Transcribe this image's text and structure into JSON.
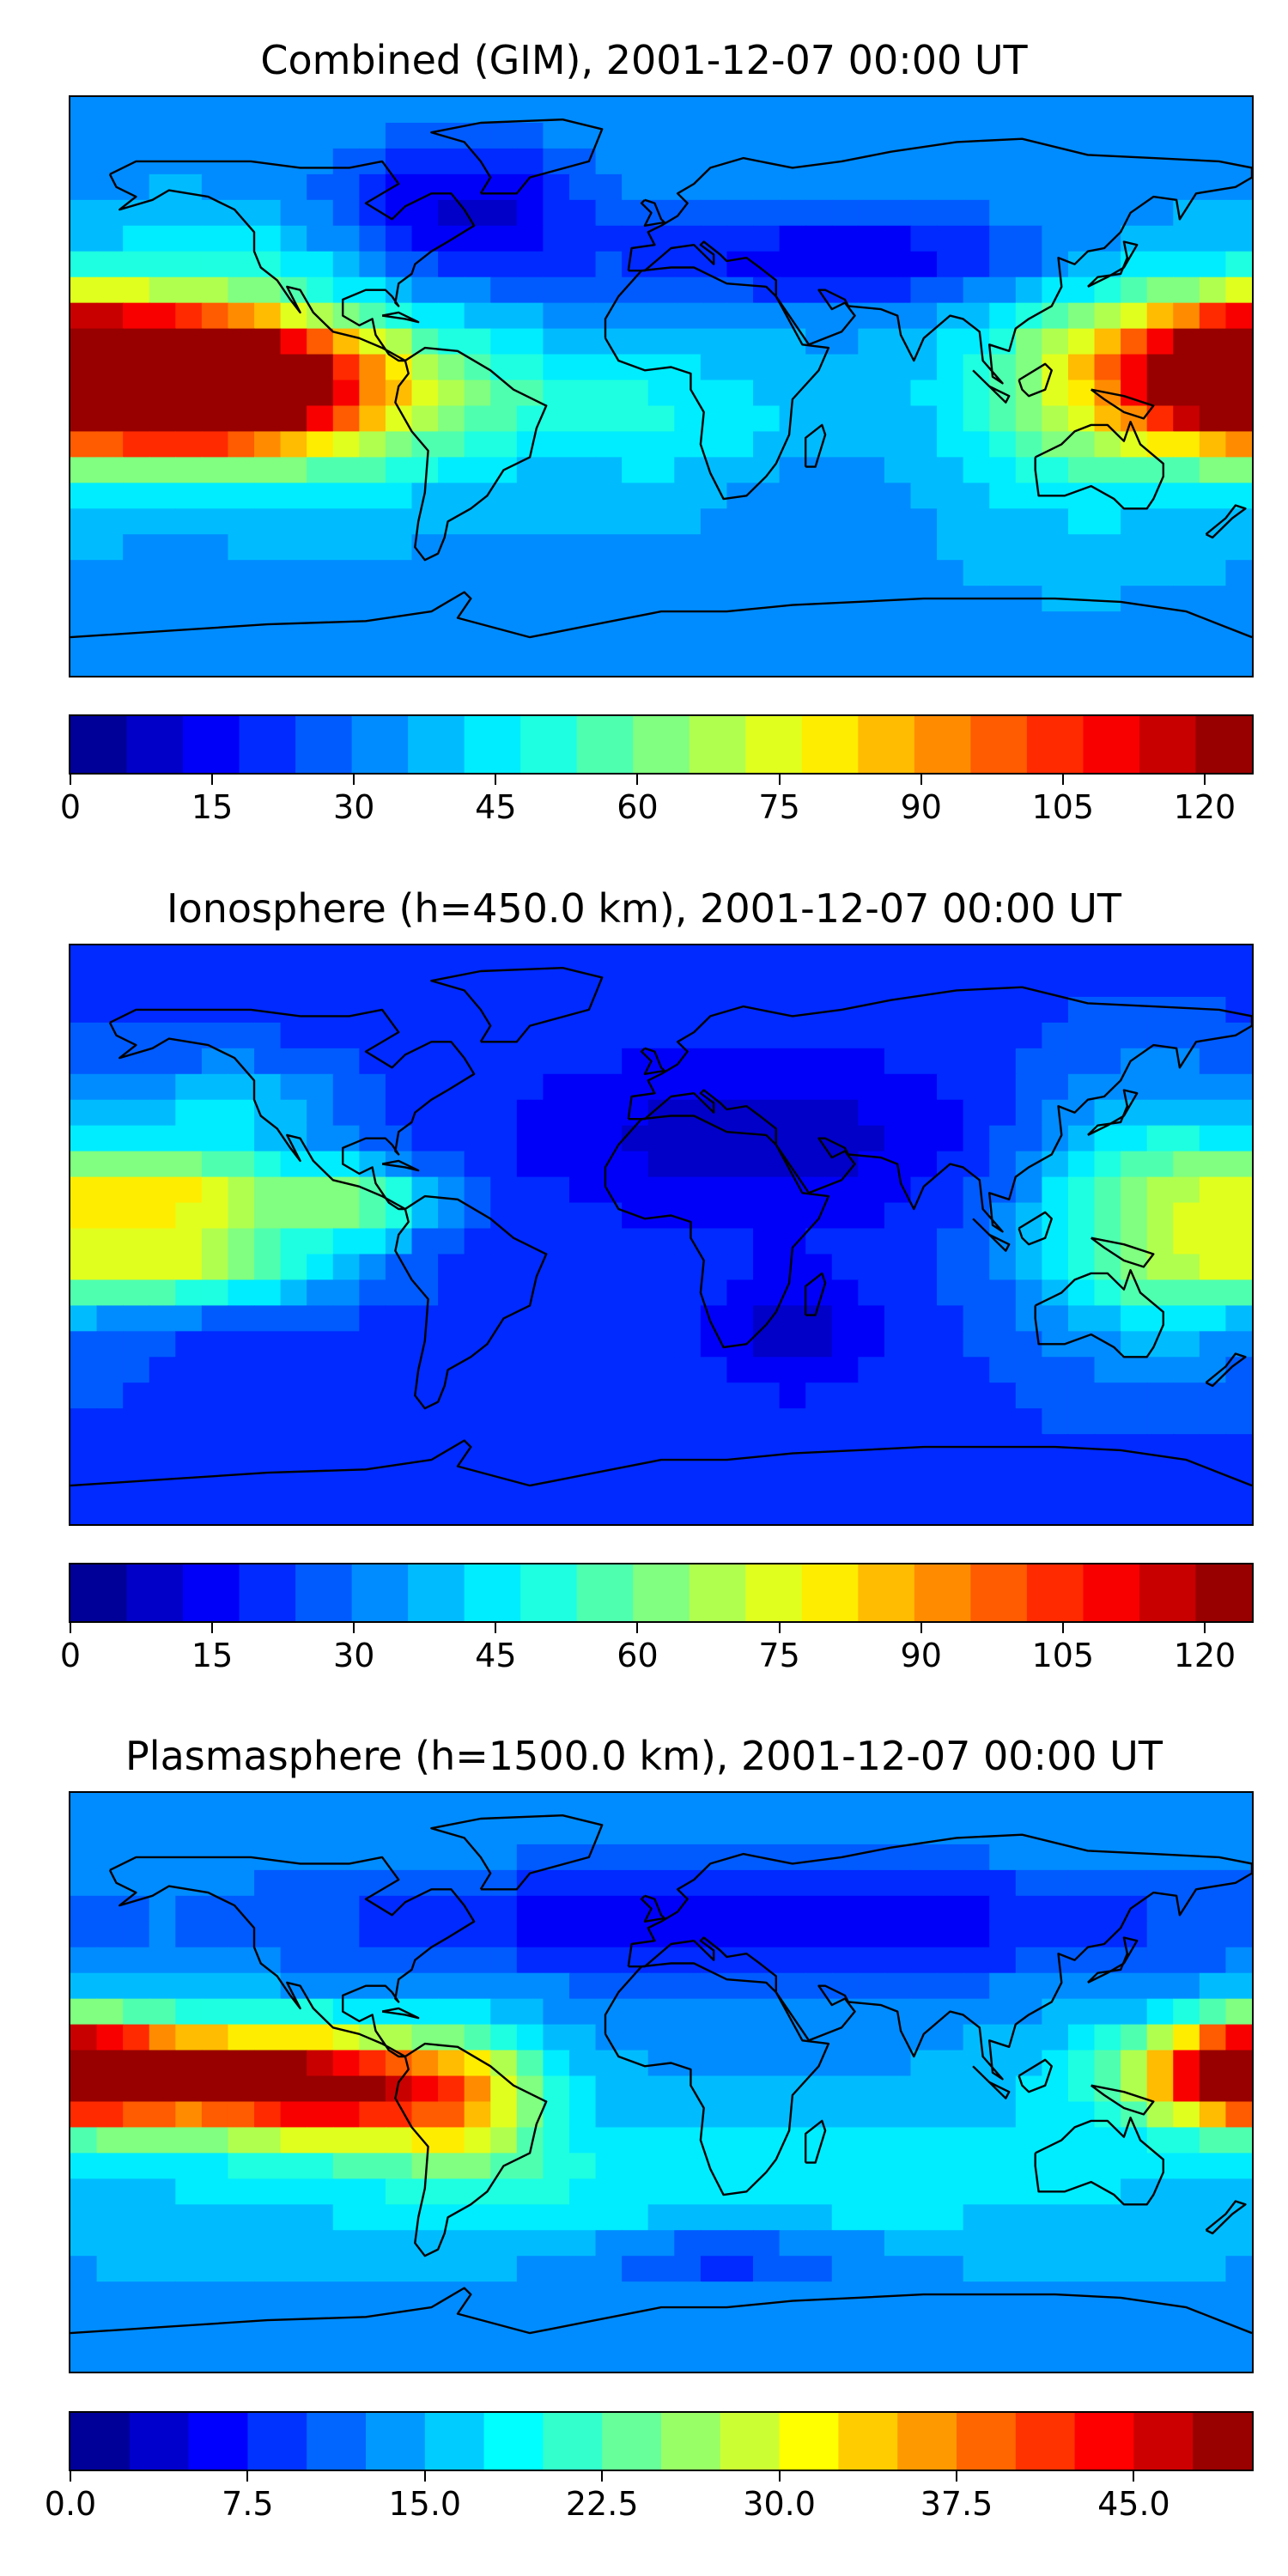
{
  "panels": [
    {
      "title": "Combined (GIM), 2001-12-07 00:00 UT",
      "scale_max": 125,
      "ticks": [
        "0",
        "15",
        "30",
        "45",
        "60",
        "75",
        "90",
        "105",
        "120"
      ],
      "tick_values": [
        0,
        15,
        30,
        45,
        60,
        75,
        90,
        105,
        120
      ],
      "blobs": [
        {
          "lon": -160,
          "lat": 3,
          "rx": 55,
          "ry": 22,
          "v": 122
        },
        {
          "lon": -140,
          "lat": 0,
          "rx": 30,
          "ry": 16,
          "v": 118
        },
        {
          "lon": 180,
          "lat": 5,
          "rx": 35,
          "ry": 22,
          "v": 98
        },
        {
          "lon": 130,
          "lat": 0,
          "rx": 40,
          "ry": 35,
          "v": 62
        },
        {
          "lon": -100,
          "lat": -2,
          "rx": 40,
          "ry": 25,
          "v": 75
        },
        {
          "lon": -40,
          "lat": -5,
          "rx": 45,
          "ry": 18,
          "v": 48
        },
        {
          "lon": 15,
          "lat": -15,
          "rx": 40,
          "ry": 25,
          "v": 44
        },
        {
          "lon": -130,
          "lat": 40,
          "rx": 35,
          "ry": 15,
          "v": 45
        },
        {
          "lon": 60,
          "lat": 40,
          "rx": 70,
          "ry": 15,
          "v": 12
        },
        {
          "lon": -60,
          "lat": 55,
          "rx": 40,
          "ry": 22,
          "v": 10
        },
        {
          "lon": 40,
          "lat": -35,
          "rx": 30,
          "ry": 20,
          "v": 28
        },
        {
          "lon": 0,
          "lat": -70,
          "rx": 180,
          "ry": 12,
          "v": 35
        }
      ],
      "base": 35
    },
    {
      "title": "Ionosphere  (h=450.0 km), 2001-12-07 00:00 UT",
      "scale_max": 125,
      "ticks": [
        "0",
        "15",
        "30",
        "45",
        "60",
        "75",
        "90",
        "105",
        "120"
      ],
      "tick_values": [
        0,
        15,
        30,
        45,
        60,
        75,
        90,
        105,
        120
      ],
      "blobs": [
        {
          "lon": -150,
          "lat": 12,
          "rx": 45,
          "ry": 14,
          "v": 76
        },
        {
          "lon": -150,
          "lat": -10,
          "rx": 50,
          "ry": 12,
          "v": 66
        },
        {
          "lon": 150,
          "lat": 5,
          "rx": 40,
          "ry": 40,
          "v": 60
        },
        {
          "lon": -90,
          "lat": 10,
          "rx": 25,
          "ry": 12,
          "v": 55
        },
        {
          "lon": 30,
          "lat": 30,
          "rx": 70,
          "ry": 25,
          "v": 8
        },
        {
          "lon": 40,
          "lat": -30,
          "rx": 25,
          "ry": 20,
          "v": 10
        },
        {
          "lon": -60,
          "lat": -5,
          "rx": 25,
          "ry": 10,
          "v": 18
        },
        {
          "lon": -130,
          "lat": 40,
          "rx": 35,
          "ry": 15,
          "v": 42
        },
        {
          "lon": 0,
          "lat": -70,
          "rx": 180,
          "ry": 12,
          "v": 22
        }
      ],
      "base": 22
    },
    {
      "title": "Plasmasphere (h=1500.0 km), 2001-12-07 00:00 UT",
      "scale_max": 50,
      "ticks": [
        "0.0",
        "7.5",
        "15.0",
        "22.5",
        "30.0",
        "37.5",
        "45.0"
      ],
      "tick_values": [
        0,
        7.5,
        15,
        22.5,
        30,
        37.5,
        45
      ],
      "blobs": [
        {
          "lon": -160,
          "lat": 2,
          "rx": 55,
          "ry": 16,
          "v": 47
        },
        {
          "lon": -100,
          "lat": -2,
          "rx": 35,
          "ry": 16,
          "v": 42
        },
        {
          "lon": 180,
          "lat": 4,
          "rx": 25,
          "ry": 14,
          "v": 38
        },
        {
          "lon": -60,
          "lat": -5,
          "rx": 25,
          "ry": 20,
          "v": 30
        },
        {
          "lon": 30,
          "lat": 50,
          "rx": 150,
          "ry": 18,
          "v": 5
        },
        {
          "lon": 20,
          "lat": -55,
          "rx": 40,
          "ry": 10,
          "v": 8
        },
        {
          "lon": 0,
          "lat": -30,
          "rx": 180,
          "ry": 20,
          "v": 19
        }
      ],
      "base": 14
    }
  ]
}
